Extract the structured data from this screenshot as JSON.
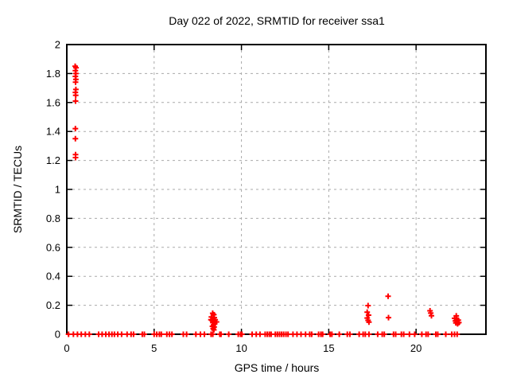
{
  "title": "Day 022 of 2022, SRMTID for receiver ssa1",
  "chart_data": {
    "type": "scatter",
    "title": "Day 022 of 2022, SRMTID for receiver ssa1",
    "xlabel": "GPS time / hours",
    "ylabel": "SRMTID / TECUs",
    "xlim": [
      0,
      24
    ],
    "ylim": [
      0,
      2
    ],
    "xticks": {
      "values": [
        0,
        5,
        10,
        15,
        20
      ],
      "labels": [
        "0",
        "5",
        "10",
        "15",
        "20"
      ]
    },
    "yticks": {
      "values": [
        0,
        0.2,
        0.4,
        0.6,
        0.8,
        1,
        1.2,
        1.4,
        1.6,
        1.8,
        2
      ],
      "labels": [
        "0",
        "0.2",
        "0.4",
        "0.6",
        "0.8",
        "1",
        "1.2",
        "1.4",
        "1.6",
        "1.8",
        "2"
      ]
    },
    "grid": {
      "show": true,
      "style": "dashed",
      "color": "#aaaaaa",
      "at_major_ticks": true
    },
    "legend": {
      "show": false
    },
    "marker": {
      "shape": "plus",
      "color": "#ff0000",
      "size": 7,
      "stroke_width": 2
    },
    "series": [
      {
        "name": "srmtid",
        "color": "#ff0000",
        "points": [
          [
            0.48,
            1.85
          ],
          [
            0.53,
            1.84
          ],
          [
            0.49,
            1.82
          ],
          [
            0.52,
            1.8
          ],
          [
            0.49,
            1.78
          ],
          [
            0.52,
            1.76
          ],
          [
            0.5,
            1.74
          ],
          [
            0.52,
            1.69
          ],
          [
            0.49,
            1.67
          ],
          [
            0.51,
            1.65
          ],
          [
            0.5,
            1.61
          ],
          [
            0.49,
            1.42
          ],
          [
            0.49,
            1.35
          ],
          [
            0.5,
            1.24
          ],
          [
            0.5,
            1.22
          ],
          [
            8.35,
            0.145
          ],
          [
            8.42,
            0.135
          ],
          [
            8.28,
            0.12
          ],
          [
            8.45,
            0.115
          ],
          [
            8.38,
            0.105
          ],
          [
            8.5,
            0.1
          ],
          [
            8.25,
            0.1
          ],
          [
            8.32,
            0.095
          ],
          [
            8.42,
            0.088
          ],
          [
            8.36,
            0.08
          ],
          [
            8.47,
            0.073
          ],
          [
            8.57,
            0.085
          ],
          [
            8.4,
            0.065
          ],
          [
            8.34,
            0.055
          ],
          [
            8.44,
            0.05
          ],
          [
            8.38,
            0.04
          ],
          [
            8.42,
            0.03
          ],
          [
            17.25,
            0.198
          ],
          [
            17.2,
            0.152
          ],
          [
            17.28,
            0.132
          ],
          [
            17.2,
            0.112
          ],
          [
            17.25,
            0.096
          ],
          [
            17.3,
            0.084
          ],
          [
            18.4,
            0.262
          ],
          [
            18.42,
            0.115
          ],
          [
            20.8,
            0.162
          ],
          [
            20.84,
            0.146
          ],
          [
            20.88,
            0.128
          ],
          [
            22.3,
            0.127
          ],
          [
            22.2,
            0.11
          ],
          [
            22.33,
            0.105
          ],
          [
            22.42,
            0.098
          ],
          [
            22.25,
            0.092
          ],
          [
            22.35,
            0.085
          ],
          [
            22.28,
            0.078
          ],
          [
            22.38,
            0.072
          ],
          [
            22.45,
            0.08
          ],
          [
            0.1,
            0
          ],
          [
            0.38,
            0
          ],
          [
            0.61,
            0
          ],
          [
            0.83,
            0
          ],
          [
            1.06,
            0
          ],
          [
            1.29,
            0
          ],
          [
            1.82,
            0
          ],
          [
            2.02,
            0
          ],
          [
            2.23,
            0
          ],
          [
            2.42,
            0
          ],
          [
            2.58,
            0
          ],
          [
            2.73,
            0
          ],
          [
            2.92,
            0
          ],
          [
            3.14,
            0
          ],
          [
            3.45,
            0
          ],
          [
            3.68,
            0
          ],
          [
            3.82,
            0
          ],
          [
            4.32,
            0
          ],
          [
            4.44,
            0
          ],
          [
            5.0,
            0
          ],
          [
            5.15,
            0
          ],
          [
            5.3,
            0
          ],
          [
            5.41,
            0
          ],
          [
            5.73,
            0
          ],
          [
            5.88,
            0
          ],
          [
            6.02,
            0
          ],
          [
            6.67,
            0
          ],
          [
            6.86,
            0
          ],
          [
            7.39,
            0
          ],
          [
            7.65,
            0
          ],
          [
            7.88,
            0
          ],
          [
            8.26,
            0
          ],
          [
            8.36,
            0
          ],
          [
            8.76,
            0
          ],
          [
            8.83,
            0
          ],
          [
            9.27,
            0
          ],
          [
            9.82,
            0
          ],
          [
            9.95,
            0
          ],
          [
            10.03,
            0
          ],
          [
            10.61,
            0
          ],
          [
            10.85,
            0
          ],
          [
            11.06,
            0
          ],
          [
            11.36,
            0
          ],
          [
            11.48,
            0
          ],
          [
            11.6,
            0
          ],
          [
            11.7,
            0
          ],
          [
            11.94,
            0
          ],
          [
            12.06,
            0
          ],
          [
            12.18,
            0
          ],
          [
            12.3,
            0
          ],
          [
            12.42,
            0
          ],
          [
            12.55,
            0
          ],
          [
            12.67,
            0
          ],
          [
            12.95,
            0
          ],
          [
            13.18,
            0
          ],
          [
            13.41,
            0
          ],
          [
            13.67,
            0
          ],
          [
            13.91,
            0
          ],
          [
            14.02,
            0
          ],
          [
            14.42,
            0
          ],
          [
            14.55,
            0
          ],
          [
            14.65,
            0
          ],
          [
            15.08,
            0
          ],
          [
            15.18,
            0
          ],
          [
            15.6,
            0
          ],
          [
            16.06,
            0
          ],
          [
            16.21,
            0
          ],
          [
            16.74,
            0
          ],
          [
            16.97,
            0
          ],
          [
            17.09,
            0
          ],
          [
            17.3,
            0
          ],
          [
            17.8,
            0
          ],
          [
            18.06,
            0
          ],
          [
            18.18,
            0
          ],
          [
            18.71,
            0
          ],
          [
            18.83,
            0
          ],
          [
            19.16,
            0
          ],
          [
            19.29,
            0
          ],
          [
            19.62,
            0
          ],
          [
            19.92,
            0
          ],
          [
            20.33,
            0
          ],
          [
            20.57,
            0
          ],
          [
            20.69,
            0
          ],
          [
            21.13,
            0
          ],
          [
            21.24,
            0
          ],
          [
            21.7,
            0
          ],
          [
            22.04,
            0
          ],
          [
            22.2,
            0
          ],
          [
            22.35,
            0
          ]
        ]
      }
    ]
  },
  "colors": {
    "marker": "#ff0000",
    "grid": "#aaaaaa",
    "axis": "#000000",
    "background": "#ffffff"
  }
}
